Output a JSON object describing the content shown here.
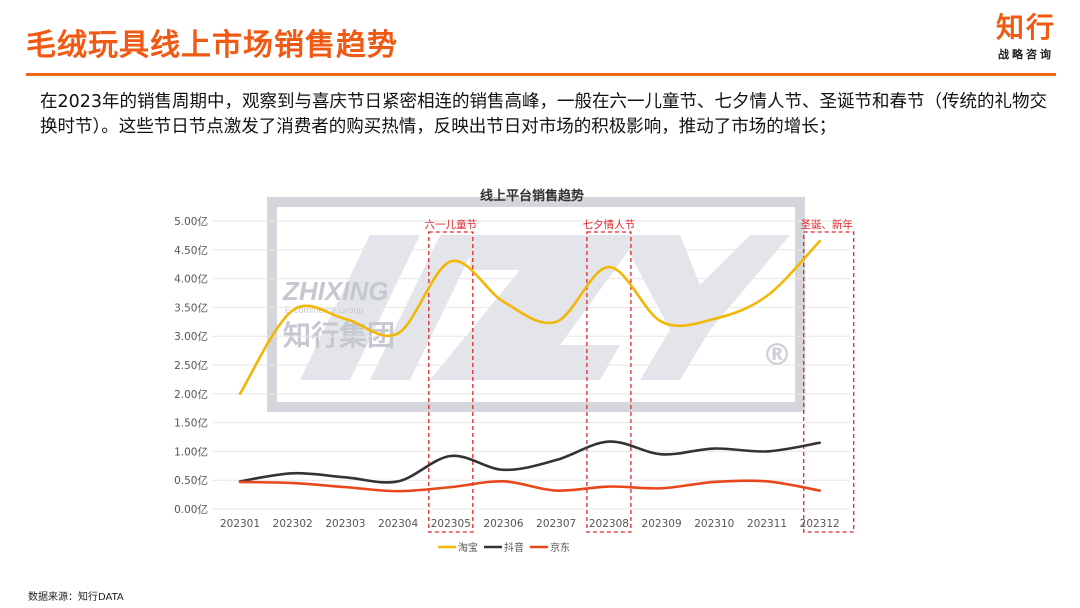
{
  "header": {
    "title": "毛绒玩具线上市场销售趋势",
    "brand_main": "知行",
    "brand_sub": "战略咨询"
  },
  "intro_text": "在2023年的销售周期中，观察到与喜庆节日紧密相连的销售高峰，一般在六一儿童节、七夕情人节、圣诞节和春节（传统的礼物交换时节）。这些节日节点激发了消费者的购买热情，反映出节日对市场的积极影响，推动了市场的增长；",
  "source_note": "数据来源：知行DATA",
  "colors": {
    "accent": "#f05a14",
    "taobao": "#f2b705",
    "douyin": "#333333",
    "jd": "#e8471c",
    "highlight": "#e0262d"
  },
  "chart_data": {
    "type": "line",
    "title": "线上平台销售趋势",
    "xlabel": "",
    "ylabel": "",
    "ylim": [
      0,
      5
    ],
    "y_ticks": [
      "0.00亿",
      "0.50亿",
      "1.00亿",
      "1.50亿",
      "2.00亿",
      "2.50亿",
      "3.00亿",
      "3.50亿",
      "4.00亿",
      "4.50亿",
      "5.00亿"
    ],
    "grid": true,
    "legend_position": "bottom",
    "categories": [
      "202301",
      "202302",
      "202303",
      "202304",
      "202305",
      "202306",
      "202307",
      "202308",
      "202309",
      "202310",
      "202311",
      "202312"
    ],
    "series": [
      {
        "name": "淘宝",
        "color": "#f2b705",
        "values": [
          2.0,
          3.45,
          3.3,
          3.05,
          4.3,
          3.6,
          3.25,
          4.2,
          3.25,
          3.3,
          3.7,
          4.65
        ]
      },
      {
        "name": "抖音",
        "color": "#333333",
        "values": [
          0.48,
          0.62,
          0.55,
          0.48,
          0.92,
          0.68,
          0.85,
          1.17,
          0.95,
          1.05,
          1.0,
          1.15
        ]
      },
      {
        "name": "京东",
        "color": "#e8471c",
        "values": [
          0.47,
          0.45,
          0.38,
          0.31,
          0.38,
          0.48,
          0.32,
          0.39,
          0.36,
          0.47,
          0.48,
          0.32
        ]
      }
    ],
    "annotations": [
      {
        "label": "六一儿童节",
        "category": "202305"
      },
      {
        "label": "七夕情人节",
        "category": "202308"
      },
      {
        "label": "圣诞、新年",
        "category": "202312"
      }
    ],
    "watermark": {
      "line1": "ZHIXING",
      "line2": "E-commerce Group",
      "line3": "知行集团"
    }
  }
}
